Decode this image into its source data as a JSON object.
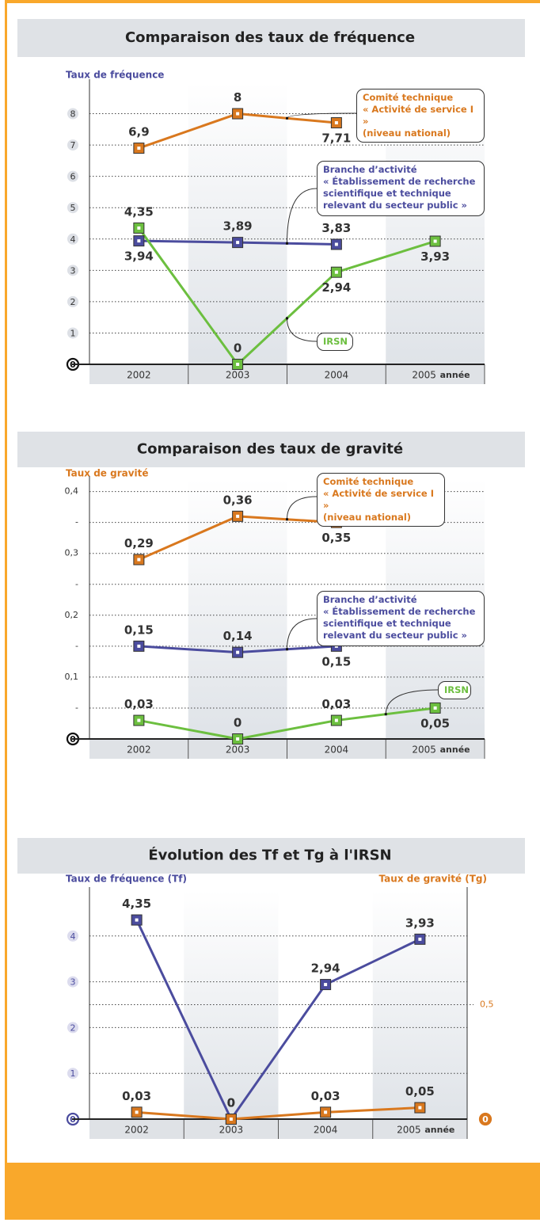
{
  "chart_data": [
    {
      "type": "line",
      "title": "Comparaison des taux de fréquence",
      "ylabel": "Taux de fréquence",
      "xlabel": "année",
      "categories": [
        "2002",
        "2003",
        "2004",
        "2005"
      ],
      "series": [
        {
          "name": "Comité technique\n« Activité de service I »\n(niveau national)",
          "color": "#d9781e",
          "values": [
            6.9,
            8,
            7.71,
            null
          ],
          "value_labels": [
            "6,9",
            "8",
            "7,71",
            null
          ]
        },
        {
          "name": "Branche d’activité\n« Établissement de recherche\nscientifique et technique\nrelevant du secteur public »",
          "color": "#4b4c9e",
          "values": [
            3.94,
            3.89,
            3.83,
            null
          ],
          "value_labels": [
            "3,94",
            "3,89",
            "3,83",
            null
          ]
        },
        {
          "name": "IRSN",
          "color": "#6cbf3f",
          "values": [
            4.35,
            0,
            2.94,
            3.93
          ],
          "value_labels": [
            "4,35",
            "0",
            "2,94",
            "3,93"
          ]
        }
      ],
      "ylim": [
        0,
        9
      ],
      "yticks": [
        0,
        1,
        2,
        3,
        4,
        5,
        6,
        7,
        8
      ],
      "grid": true
    },
    {
      "type": "line",
      "title": "Comparaison des taux de gravité",
      "ylabel": "Taux de gravité",
      "xlabel": "année",
      "categories": [
        "2002",
        "2003",
        "2004",
        "2005"
      ],
      "series": [
        {
          "name": "Comité technique\n« Activité de service I »\n(niveau national)",
          "color": "#d9781e",
          "values": [
            0.29,
            0.36,
            0.35,
            null
          ],
          "value_labels": [
            "0,29",
            "0,36",
            "0,35",
            null
          ]
        },
        {
          "name": "Branche d’activité\n« Établissement de recherche\nscientifique et technique\nrelevant du secteur public »",
          "color": "#4b4c9e",
          "values": [
            0.15,
            0.14,
            0.15,
            null
          ],
          "value_labels": [
            "0,15",
            "0,14",
            "0,15",
            null
          ]
        },
        {
          "name": "IRSN",
          "color": "#6cbf3f",
          "values": [
            0.03,
            0,
            0.03,
            0.05
          ],
          "value_labels": [
            "0,03",
            "0",
            "0,03",
            "0,05"
          ]
        }
      ],
      "ylim": [
        0,
        0.42
      ],
      "yticks": [
        0,
        {
          "value": 0.05,
          "label": "-"
        },
        {
          "value": 0.1,
          "label": "0,1"
        },
        {
          "value": 0.15,
          "label": "-"
        },
        {
          "value": 0.2,
          "label": "0,2"
        },
        {
          "value": 0.25,
          "label": "-"
        },
        {
          "value": 0.3,
          "label": "0,3"
        },
        {
          "value": 0.35,
          "label": "-"
        },
        {
          "value": 0.4,
          "label": "0,4"
        }
      ],
      "grid": true
    },
    {
      "type": "line",
      "title": "Évolution des Tf et Tg à l'IRSN",
      "ylabel": "Taux de fréquence (Tf)",
      "y2label": "Taux de gravité (Tg)",
      "xlabel": "année",
      "categories": [
        "2002",
        "2003",
        "2004",
        "2005"
      ],
      "series": [
        {
          "color": "#4b4c9e",
          "values": [
            4.35,
            0,
            2.94,
            3.93
          ],
          "value_labels": [
            "4,35",
            "0",
            "2,94",
            "3,93"
          ]
        },
        {
          "color": "#d9781e",
          "axis": "y2",
          "values": [
            0.03,
            0,
            0.03,
            0.05
          ],
          "value_labels": [
            "0,03",
            "0",
            "0,03",
            "0,05"
          ]
        }
      ],
      "ylim": [
        0,
        5
      ],
      "yticks": [
        0,
        1,
        2,
        3,
        4
      ],
      "y2lim": [
        0,
        1
      ],
      "y2ticks": [
        0,
        {
          "value": 0.5,
          "label": "0,5"
        }
      ],
      "grid": true
    }
  ]
}
